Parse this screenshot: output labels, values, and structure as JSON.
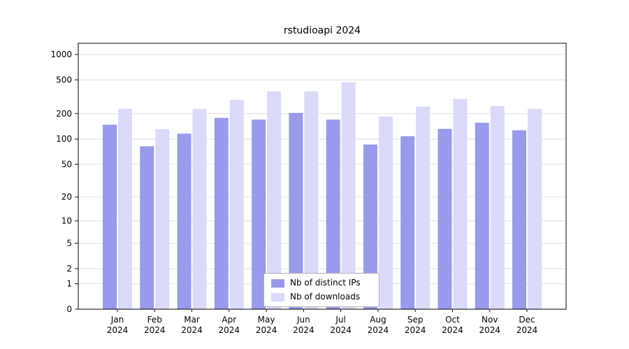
{
  "chart_data": {
    "type": "bar",
    "title": "rstudioapi 2024",
    "xlabel": "",
    "ylabel": "",
    "scale": "log1p",
    "grid": true,
    "legend_position": "lower center",
    "categories": [
      "Jan 2024",
      "Feb 2024",
      "Mar 2024",
      "Apr 2024",
      "May 2024",
      "Jun 2024",
      "Jul 2024",
      "Aug 2024",
      "Sep 2024",
      "Oct 2024",
      "Nov 2024",
      "Dec 2024"
    ],
    "series": [
      {
        "name": "Nb of distinct IPs",
        "color": "#9999ed",
        "values": [
          148,
          82,
          116,
          178,
          170,
          204,
          170,
          86,
          108,
          132,
          156,
          127
        ]
      },
      {
        "name": "Nb of downloads",
        "color": "#dadaf8",
        "values": [
          228,
          131,
          228,
          292,
          367,
          367,
          470,
          185,
          242,
          298,
          246,
          228
        ]
      }
    ],
    "yticks": [
      0,
      1,
      2,
      5,
      10,
      20,
      50,
      100,
      200,
      500,
      1000
    ],
    "ylim": [
      0,
      1000
    ],
    "frame_color": "#000000",
    "gridline_color": "#dcdcdc"
  }
}
